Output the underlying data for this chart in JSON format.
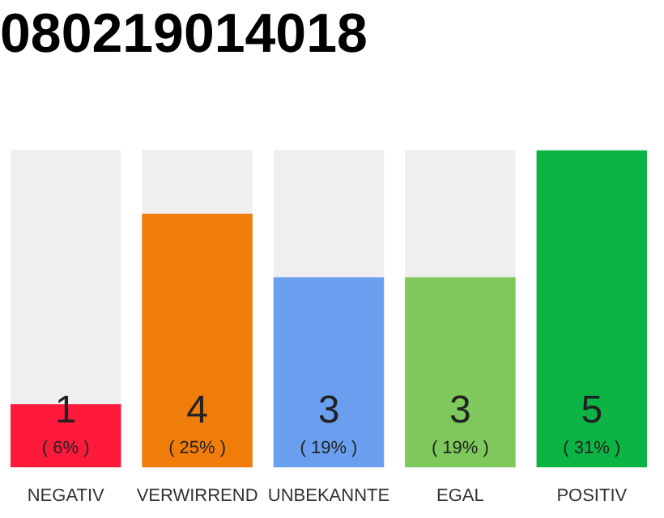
{
  "chart_data": {
    "type": "bar",
    "title": "080219014018",
    "categories": [
      "NEGATIV",
      "VERWIRREND",
      "UNBEKANNTE",
      "EGAL",
      "POSITIV"
    ],
    "values": [
      1,
      4,
      3,
      3,
      5
    ],
    "colors": [
      "#ff1a3c",
      "#f07d0a",
      "#6a9ff0",
      "#7ec85c",
      "#0cb444"
    ],
    "data_labels": true,
    "annotations": [
      "( 6% )",
      "( 25% )",
      "( 19% )",
      "( 19% )",
      "( 31% )"
    ]
  }
}
